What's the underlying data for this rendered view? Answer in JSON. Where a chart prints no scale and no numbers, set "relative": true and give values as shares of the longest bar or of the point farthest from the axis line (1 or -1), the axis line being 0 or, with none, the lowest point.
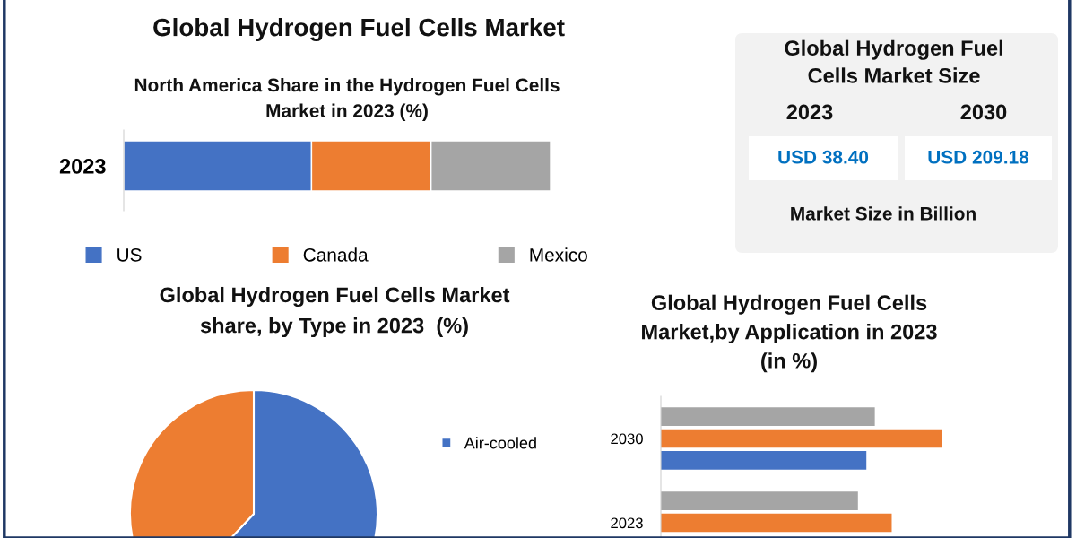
{
  "chart_data": [
    {
      "type": "bar",
      "title": "Global Hydrogen Fuel Cells Market",
      "subtitle": "North America Share in the Hydrogen Fuel Cells\nMarket in 2023 (%)",
      "orientation": "horizontal",
      "stacked": true,
      "relative": true,
      "categories": [
        "2023"
      ],
      "legend": "bottom",
      "series": [
        {
          "name": "US",
          "color": "#4472c4",
          "values": [
            0.44
          ]
        },
        {
          "name": "Canada",
          "color": "#ed7d31",
          "values": [
            0.28
          ]
        },
        {
          "name": "Mexico",
          "color": "#a5a5a5",
          "values": [
            0.28
          ]
        }
      ]
    },
    {
      "type": "other",
      "title": "Global Hydrogen Fuel\nCells Market Size",
      "categories": [
        "2023",
        "2030"
      ],
      "annotations": [
        "USD 38.40",
        "USD 209.18",
        "Market Size in Billion"
      ]
    },
    {
      "type": "pie",
      "title": "Global Hydrogen Fuel Cells Market\nshare, by Type in 2023  (%)",
      "categories": [
        "Air-cooled",
        null
      ],
      "values": [
        62,
        38
      ],
      "colors": [
        "#4472c4",
        "#ed7d31"
      ],
      "legend": "right"
    },
    {
      "type": "bar",
      "title": "Global Hydrogen Fuel Cells\nMarket,by Application in 2023\n(in %)",
      "orientation": "horizontal",
      "relative": true,
      "categories": [
        "2030",
        "2023"
      ],
      "series": [
        {
          "color": "#4472c4",
          "values": [
            0.73,
            null
          ]
        },
        {
          "color": "#ed7d31",
          "values": [
            1.0,
            0.82
          ]
        },
        {
          "color": "#a5a5a5",
          "values": [
            0.76,
            0.7
          ]
        }
      ]
    }
  ]
}
